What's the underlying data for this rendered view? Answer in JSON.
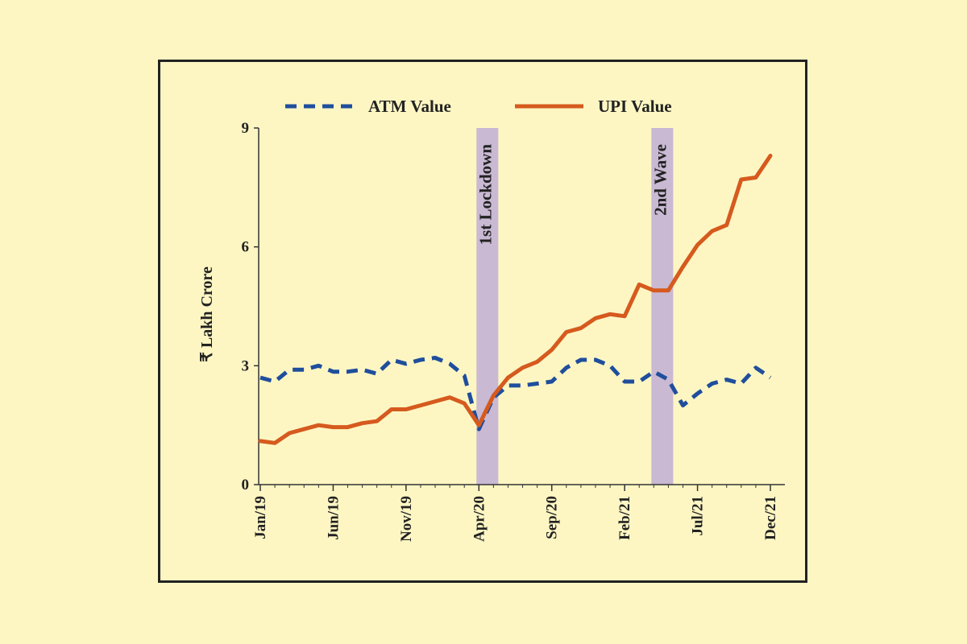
{
  "chart_data": {
    "type": "line",
    "title": "",
    "ylabel": "₹ Lakh Crore",
    "xlabel": "",
    "ylim": [
      0,
      9
    ],
    "y_ticks": [
      "0",
      "3",
      "6",
      "9"
    ],
    "x_ticks": [
      "Jan/19",
      "Jun/19",
      "Nov/19",
      "Apr/20",
      "Sep/20",
      "Feb/21",
      "Jul/21",
      "Dec/21"
    ],
    "x": [
      "Jan/19",
      "Feb/19",
      "Mar/19",
      "Apr/19",
      "May/19",
      "Jun/19",
      "Jul/19",
      "Aug/19",
      "Sep/19",
      "Oct/19",
      "Nov/19",
      "Dec/19",
      "Jan/20",
      "Feb/20",
      "Mar/20",
      "Apr/20",
      "May/20",
      "Jun/20",
      "Jul/20",
      "Aug/20",
      "Sep/20",
      "Oct/20",
      "Nov/20",
      "Dec/20",
      "Jan/21",
      "Feb/21",
      "Mar/21",
      "Apr/21",
      "May/21",
      "Jun/21",
      "Jul/21",
      "Aug/21",
      "Sep/21",
      "Oct/21",
      "Nov/21",
      "Dec/21"
    ],
    "series": [
      {
        "name": "ATM Value",
        "color": "#1f4e9c",
        "style": "dashed",
        "values": [
          2.7,
          2.6,
          2.9,
          2.9,
          3.0,
          2.85,
          2.85,
          2.9,
          2.8,
          3.15,
          3.05,
          3.15,
          3.2,
          3.05,
          2.75,
          1.4,
          2.2,
          2.5,
          2.5,
          2.55,
          2.6,
          2.95,
          3.15,
          3.15,
          3.0,
          2.6,
          2.6,
          2.85,
          2.65,
          2.0,
          2.3,
          2.55,
          2.65,
          2.55,
          2.95,
          2.7
        ]
      },
      {
        "name": "UPI Value",
        "color": "#d65a1e",
        "style": "solid",
        "values": [
          1.1,
          1.05,
          1.3,
          1.4,
          1.5,
          1.45,
          1.45,
          1.55,
          1.6,
          1.9,
          1.9,
          2.0,
          2.1,
          2.2,
          2.05,
          1.5,
          2.25,
          2.7,
          2.95,
          3.1,
          3.4,
          3.85,
          3.95,
          4.2,
          4.3,
          4.25,
          5.05,
          4.9,
          4.9,
          5.5,
          6.05,
          6.4,
          6.55,
          7.7,
          7.75,
          8.3
        ]
      }
    ],
    "legend": {
      "placement": "top"
    },
    "bands": [
      {
        "label": "1st Lockdown",
        "start": "Apr/20",
        "end": "May/20",
        "color": "#bfaed6"
      },
      {
        "label": "2nd Wave",
        "start": "Apr/21",
        "end": "May/21",
        "color": "#bfaed6"
      }
    ],
    "grid": false
  }
}
